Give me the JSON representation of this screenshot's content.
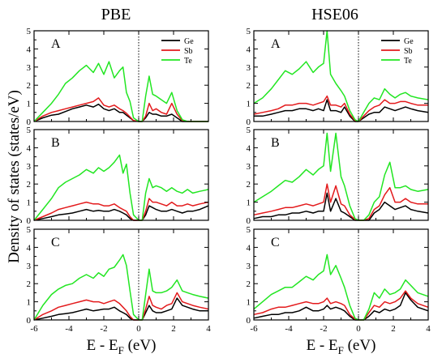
{
  "figure": {
    "ylabel": "Density of states (states/eV)"
  },
  "colors": {
    "Ge": "#000000",
    "Sb": "#e31a1c",
    "Te": "#22e622"
  },
  "chart_data": [
    {
      "type": "line",
      "column": "PBE",
      "panel": "A",
      "title": "PBE",
      "xlabel": "E - E_F (eV)",
      "xlim": [
        -6,
        4
      ],
      "ylim": [
        0,
        5
      ],
      "xticks": [
        "-6",
        "-4",
        "-2",
        "0",
        "2",
        "4"
      ],
      "yticks": [
        "0",
        "1",
        "2",
        "3",
        "4",
        "5"
      ],
      "legend": [
        "Ge",
        "Sb",
        "Te"
      ],
      "legend_position": "top-right",
      "fermi_line": 0,
      "x": [
        -6,
        -5.5,
        -5,
        -4.6,
        -4.2,
        -3.8,
        -3.4,
        -3,
        -2.6,
        -2.3,
        -2,
        -1.7,
        -1.4,
        -1.1,
        -0.9,
        -0.7,
        -0.5,
        -0.3,
        0,
        0.2,
        0.4,
        0.6,
        0.8,
        1,
        1.3,
        1.6,
        1.9,
        2.2,
        2.5,
        2.8,
        3.1,
        3.5,
        4
      ],
      "series": [
        {
          "name": "Ge",
          "values": [
            0,
            0.2,
            0.35,
            0.4,
            0.55,
            0.7,
            0.8,
            0.9,
            0.8,
            0.95,
            0.7,
            0.6,
            0.7,
            0.5,
            0.5,
            0.35,
            0.2,
            0.05,
            0,
            0,
            0.2,
            0.5,
            0.4,
            0.4,
            0.3,
            0.3,
            0.4,
            0.2,
            0,
            0,
            0,
            0,
            0
          ]
        },
        {
          "name": "Sb",
          "values": [
            0,
            0.3,
            0.5,
            0.6,
            0.7,
            0.8,
            0.9,
            1.0,
            1.1,
            1.3,
            0.9,
            0.8,
            0.9,
            0.7,
            0.6,
            0.45,
            0.25,
            0.05,
            0,
            0,
            0.3,
            1.0,
            0.6,
            0.7,
            0.5,
            0.4,
            1.0,
            0.4,
            0.05,
            0,
            0,
            0,
            0
          ]
        },
        {
          "name": "Te",
          "values": [
            0,
            0.5,
            1.0,
            1.5,
            2.1,
            2.4,
            2.8,
            3.1,
            2.7,
            3.2,
            2.6,
            3.3,
            2.4,
            2.8,
            3.0,
            1.6,
            1.1,
            0.2,
            0,
            0,
            1.4,
            2.5,
            1.5,
            1.4,
            1.2,
            1.0,
            1.6,
            0.6,
            0.1,
            0,
            0,
            0,
            0
          ]
        }
      ]
    },
    {
      "type": "line",
      "column": "PBE",
      "panel": "B",
      "xlabel": "E - E_F (eV)",
      "xlim": [
        -6,
        4
      ],
      "ylim": [
        0,
        5
      ],
      "xticks": [
        "-6",
        "-4",
        "-2",
        "0",
        "2",
        "4"
      ],
      "yticks": [
        "0",
        "1",
        "2",
        "3",
        "4",
        "5"
      ],
      "fermi_line": 0,
      "x": [
        -6,
        -5.5,
        -5,
        -4.6,
        -4.2,
        -3.8,
        -3.4,
        -3,
        -2.6,
        -2.3,
        -2,
        -1.7,
        -1.4,
        -1.1,
        -0.9,
        -0.7,
        -0.5,
        -0.3,
        0,
        0.2,
        0.4,
        0.6,
        0.8,
        1,
        1.3,
        1.6,
        1.9,
        2.2,
        2.5,
        2.8,
        3.1,
        3.5,
        4
      ],
      "series": [
        {
          "name": "Ge",
          "values": [
            0,
            0.1,
            0.2,
            0.3,
            0.35,
            0.4,
            0.5,
            0.6,
            0.5,
            0.55,
            0.5,
            0.5,
            0.6,
            0.5,
            0.4,
            0.3,
            0.1,
            0,
            0,
            0,
            0.3,
            0.8,
            0.7,
            0.6,
            0.5,
            0.5,
            0.6,
            0.5,
            0.4,
            0.5,
            0.5,
            0.6,
            0.8
          ]
        },
        {
          "name": "Sb",
          "values": [
            0,
            0.2,
            0.4,
            0.6,
            0.7,
            0.8,
            0.9,
            1.0,
            0.9,
            0.9,
            0.8,
            0.8,
            0.9,
            0.7,
            0.6,
            0.5,
            0.2,
            0,
            0,
            0,
            0.5,
            1.2,
            1.0,
            1.0,
            0.9,
            0.8,
            1.0,
            0.8,
            0.8,
            0.9,
            0.8,
            0.9,
            1.0
          ]
        },
        {
          "name": "Te",
          "values": [
            0,
            0.6,
            1.2,
            1.8,
            2.1,
            2.3,
            2.5,
            2.8,
            2.6,
            2.9,
            2.7,
            2.9,
            3.2,
            3.6,
            2.6,
            3.1,
            1.5,
            0.3,
            0,
            0,
            1.5,
            2.3,
            1.8,
            1.9,
            1.8,
            1.6,
            1.8,
            1.6,
            1.5,
            1.7,
            1.5,
            1.6,
            1.7
          ]
        }
      ]
    },
    {
      "type": "line",
      "column": "PBE",
      "panel": "C",
      "xlabel": "E - E_F (eV)",
      "xlim": [
        -6,
        4
      ],
      "ylim": [
        0,
        5
      ],
      "xticks": [
        "-6",
        "-4",
        "-2",
        "0",
        "2",
        "4"
      ],
      "yticks": [
        "0",
        "1",
        "2",
        "3",
        "4",
        "5"
      ],
      "fermi_line": 0,
      "x": [
        -6,
        -5.5,
        -5,
        -4.6,
        -4.2,
        -3.8,
        -3.4,
        -3,
        -2.6,
        -2.3,
        -2,
        -1.7,
        -1.4,
        -1.1,
        -0.9,
        -0.7,
        -0.5,
        -0.3,
        0,
        0.2,
        0.4,
        0.6,
        0.8,
        1,
        1.3,
        1.6,
        1.9,
        2.2,
        2.5,
        2.8,
        3.1,
        3.5,
        4
      ],
      "series": [
        {
          "name": "Ge",
          "values": [
            0,
            0.1,
            0.2,
            0.3,
            0.35,
            0.4,
            0.5,
            0.6,
            0.5,
            0.55,
            0.6,
            0.6,
            0.7,
            0.5,
            0.4,
            0.3,
            0.1,
            0,
            0,
            0,
            0.4,
            0.8,
            0.5,
            0.4,
            0.4,
            0.5,
            0.6,
            1.2,
            0.8,
            0.7,
            0.6,
            0.5,
            0.5
          ]
        },
        {
          "name": "Sb",
          "values": [
            0,
            0.3,
            0.5,
            0.7,
            0.8,
            0.9,
            1.0,
            1.1,
            1.0,
            1.0,
            0.9,
            1.0,
            1.1,
            0.9,
            0.7,
            0.5,
            0.2,
            0,
            0,
            0,
            0.6,
            1.3,
            0.8,
            0.7,
            0.6,
            0.8,
            0.9,
            1.5,
            1.0,
            0.9,
            0.8,
            0.7,
            0.6
          ]
        },
        {
          "name": "Te",
          "values": [
            0,
            0.8,
            1.4,
            1.7,
            1.9,
            2.0,
            2.3,
            2.5,
            2.3,
            2.6,
            2.4,
            2.8,
            2.9,
            3.3,
            3.6,
            3.0,
            1.6,
            0.3,
            0,
            0,
            1.4,
            2.8,
            1.6,
            1.5,
            1.5,
            1.6,
            1.8,
            2.2,
            1.6,
            1.5,
            1.4,
            1.3,
            1.2
          ]
        }
      ]
    },
    {
      "type": "line",
      "column": "HSE06",
      "panel": "A",
      "title": "HSE06",
      "xlabel": "E - E_F (eV)",
      "xlim": [
        -6,
        4
      ],
      "ylim": [
        0,
        5
      ],
      "xticks": [
        "-6",
        "-4",
        "-2",
        "0",
        "2",
        "4"
      ],
      "yticks": [
        "0",
        "1",
        "2",
        "3",
        "4",
        "5"
      ],
      "legend": [
        "Ge",
        "Sb",
        "Te"
      ],
      "legend_position": "top-right",
      "fermi_line": 0,
      "x": [
        -6,
        -5.5,
        -5,
        -4.6,
        -4.2,
        -3.8,
        -3.4,
        -3,
        -2.6,
        -2.3,
        -2,
        -1.8,
        -1.6,
        -1.3,
        -1,
        -0.8,
        -0.5,
        -0.2,
        0,
        0.3,
        0.6,
        0.9,
        1.2,
        1.5,
        1.8,
        2.1,
        2.4,
        2.7,
        3,
        3.4,
        4
      ],
      "series": [
        {
          "name": "Ge",
          "values": [
            0.3,
            0.3,
            0.4,
            0.5,
            0.6,
            0.6,
            0.7,
            0.7,
            0.6,
            0.7,
            0.6,
            1.2,
            0.6,
            0.6,
            0.5,
            0.8,
            0.3,
            0,
            0,
            0.2,
            0.4,
            0.5,
            0.5,
            0.8,
            0.7,
            0.6,
            0.7,
            0.8,
            0.7,
            0.6,
            0.5
          ]
        },
        {
          "name": "Sb",
          "values": [
            0.4,
            0.5,
            0.6,
            0.7,
            0.9,
            0.9,
            1.0,
            1.0,
            0.9,
            1.0,
            1.1,
            1.4,
            0.9,
            0.9,
            0.8,
            1.0,
            0.4,
            0.05,
            0,
            0.3,
            0.6,
            0.8,
            0.9,
            1.2,
            1.0,
            1.0,
            1.1,
            1.1,
            1.0,
            0.9,
            0.9
          ]
        },
        {
          "name": "Te",
          "values": [
            1.0,
            1.3,
            1.8,
            2.3,
            2.8,
            2.6,
            2.9,
            3.3,
            2.7,
            3.0,
            3.2,
            5.0,
            2.6,
            2.1,
            1.7,
            1.4,
            0.6,
            0.1,
            0,
            0.5,
            1.0,
            1.3,
            1.2,
            1.8,
            1.5,
            1.3,
            1.5,
            1.6,
            1.4,
            1.3,
            1.2
          ]
        }
      ]
    },
    {
      "type": "line",
      "column": "HSE06",
      "panel": "B",
      "xlabel": "E - E_F (eV)",
      "xlim": [
        -6,
        4
      ],
      "ylim": [
        0,
        5
      ],
      "xticks": [
        "-6",
        "-4",
        "-2",
        "0",
        "2",
        "4"
      ],
      "yticks": [
        "0",
        "1",
        "2",
        "3",
        "4",
        "5"
      ],
      "fermi_line": 0,
      "x": [
        -6,
        -5.5,
        -5,
        -4.6,
        -4.2,
        -3.8,
        -3.4,
        -3,
        -2.6,
        -2.3,
        -2,
        -1.8,
        -1.6,
        -1.3,
        -1,
        -0.8,
        -0.5,
        -0.2,
        0,
        0.3,
        0.6,
        0.9,
        1.2,
        1.5,
        1.8,
        2.1,
        2.4,
        2.7,
        3,
        3.4,
        4
      ],
      "series": [
        {
          "name": "Ge",
          "values": [
            0.1,
            0.2,
            0.2,
            0.3,
            0.3,
            0.4,
            0.4,
            0.5,
            0.4,
            0.5,
            0.5,
            1.5,
            0.5,
            1.2,
            0.5,
            0.4,
            0.2,
            0,
            0,
            0,
            0,
            0.4,
            0.6,
            1.0,
            0.8,
            0.6,
            0.7,
            0.8,
            0.6,
            0.5,
            0.4
          ]
        },
        {
          "name": "Sb",
          "values": [
            0.3,
            0.4,
            0.5,
            0.6,
            0.7,
            0.7,
            0.8,
            0.9,
            0.8,
            0.9,
            1.0,
            2.0,
            1.0,
            1.9,
            0.9,
            0.8,
            0.3,
            0.05,
            0,
            0,
            0.1,
            0.6,
            0.8,
            1.4,
            1.8,
            1.0,
            1.0,
            1.2,
            1.0,
            0.9,
            0.9
          ]
        },
        {
          "name": "Te",
          "values": [
            1.0,
            1.3,
            1.6,
            1.9,
            2.2,
            2.1,
            2.4,
            2.8,
            2.5,
            2.8,
            3.0,
            4.8,
            2.7,
            4.8,
            2.4,
            1.9,
            0.8,
            0.1,
            0,
            0,
            0.3,
            1.0,
            1.3,
            2.5,
            3.2,
            1.8,
            1.8,
            1.9,
            1.7,
            1.6,
            1.7
          ]
        }
      ]
    },
    {
      "type": "line",
      "column": "HSE06",
      "panel": "C",
      "xlabel": "E - E_F (eV)",
      "xlim": [
        -6,
        4
      ],
      "ylim": [
        0,
        5
      ],
      "xticks": [
        "-6",
        "-4",
        "-2",
        "0",
        "2",
        "4"
      ],
      "yticks": [
        "0",
        "1",
        "2",
        "3",
        "4",
        "5"
      ],
      "fermi_line": 0,
      "x": [
        -6,
        -5.5,
        -5,
        -4.6,
        -4.2,
        -3.8,
        -3.4,
        -3,
        -2.6,
        -2.3,
        -2,
        -1.8,
        -1.6,
        -1.3,
        -1,
        -0.8,
        -0.5,
        -0.2,
        0,
        0.3,
        0.6,
        0.9,
        1.2,
        1.5,
        1.8,
        2.1,
        2.4,
        2.7,
        3,
        3.4,
        4
      ],
      "series": [
        {
          "name": "Ge",
          "values": [
            0.1,
            0.2,
            0.3,
            0.3,
            0.4,
            0.4,
            0.5,
            0.7,
            0.5,
            0.5,
            0.6,
            0.8,
            0.6,
            0.7,
            0.6,
            0.5,
            0.2,
            0,
            0,
            0,
            0.2,
            0.5,
            0.4,
            0.6,
            0.5,
            0.6,
            0.8,
            1.5,
            1.1,
            0.7,
            0.5
          ]
        },
        {
          "name": "Sb",
          "values": [
            0.3,
            0.4,
            0.6,
            0.7,
            0.7,
            0.8,
            0.9,
            1.0,
            0.9,
            0.9,
            1.0,
            1.2,
            0.9,
            1.0,
            0.9,
            0.8,
            0.3,
            0.05,
            0,
            0,
            0.4,
            0.8,
            0.7,
            1.0,
            0.9,
            1.0,
            1.2,
            1.6,
            1.2,
            0.9,
            0.7
          ]
        },
        {
          "name": "Te",
          "values": [
            0.6,
            1.0,
            1.4,
            1.6,
            1.8,
            1.8,
            2.1,
            2.4,
            2.2,
            2.5,
            2.7,
            3.6,
            2.5,
            3.0,
            2.3,
            1.8,
            0.8,
            0.1,
            0,
            0,
            0.6,
            1.5,
            1.2,
            1.7,
            1.4,
            1.5,
            1.7,
            2.2,
            1.9,
            1.5,
            1.3
          ]
        }
      ]
    }
  ]
}
